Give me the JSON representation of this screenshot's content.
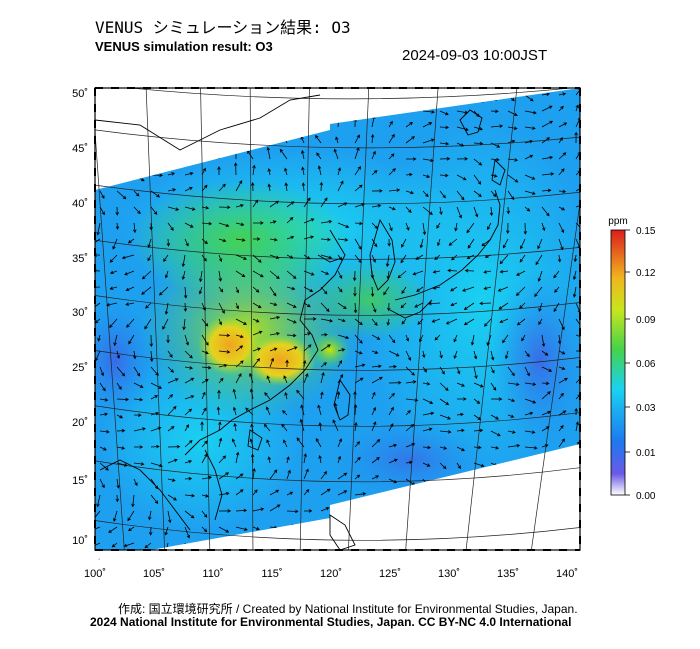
{
  "header": {
    "title_jp": "VENUS シミュレーション結果: O3",
    "title_en": "VENUS simulation result: O3",
    "timestamp": "2024-09-03 10:00JST"
  },
  "map": {
    "lat_labels": [
      "50˚",
      "45˚",
      "40˚",
      "35˚",
      "30˚",
      "25˚",
      "20˚",
      "15˚",
      "10˚"
    ],
    "lon_labels": [
      "100˚",
      "105˚",
      "110˚",
      "115˚",
      "120˚",
      "125˚",
      "130˚",
      "135˚",
      "140˚"
    ],
    "variable": "O3",
    "units": "ppm",
    "colors": {
      "low": "#5a4ef0",
      "mid_low": "#1e8cf0",
      "mid": "#19dcf0",
      "mid_high": "#46d24a",
      "high": "#f0c81e",
      "peak": "#dc1e1e"
    }
  },
  "colorbar": {
    "unit": "ppm",
    "ticks": [
      "0.15",
      "0.12",
      "0.09",
      "0.06",
      "0.03",
      "0.01",
      "0.00"
    ]
  },
  "footer": {
    "credit_jp_en": "作成: 国立環境研究所 / Created by National Institute for Environmental Studies, Japan.",
    "copyright": "2024 National Institute for Environmental Studies, Japan. CC BY-NC 4.0 International"
  }
}
